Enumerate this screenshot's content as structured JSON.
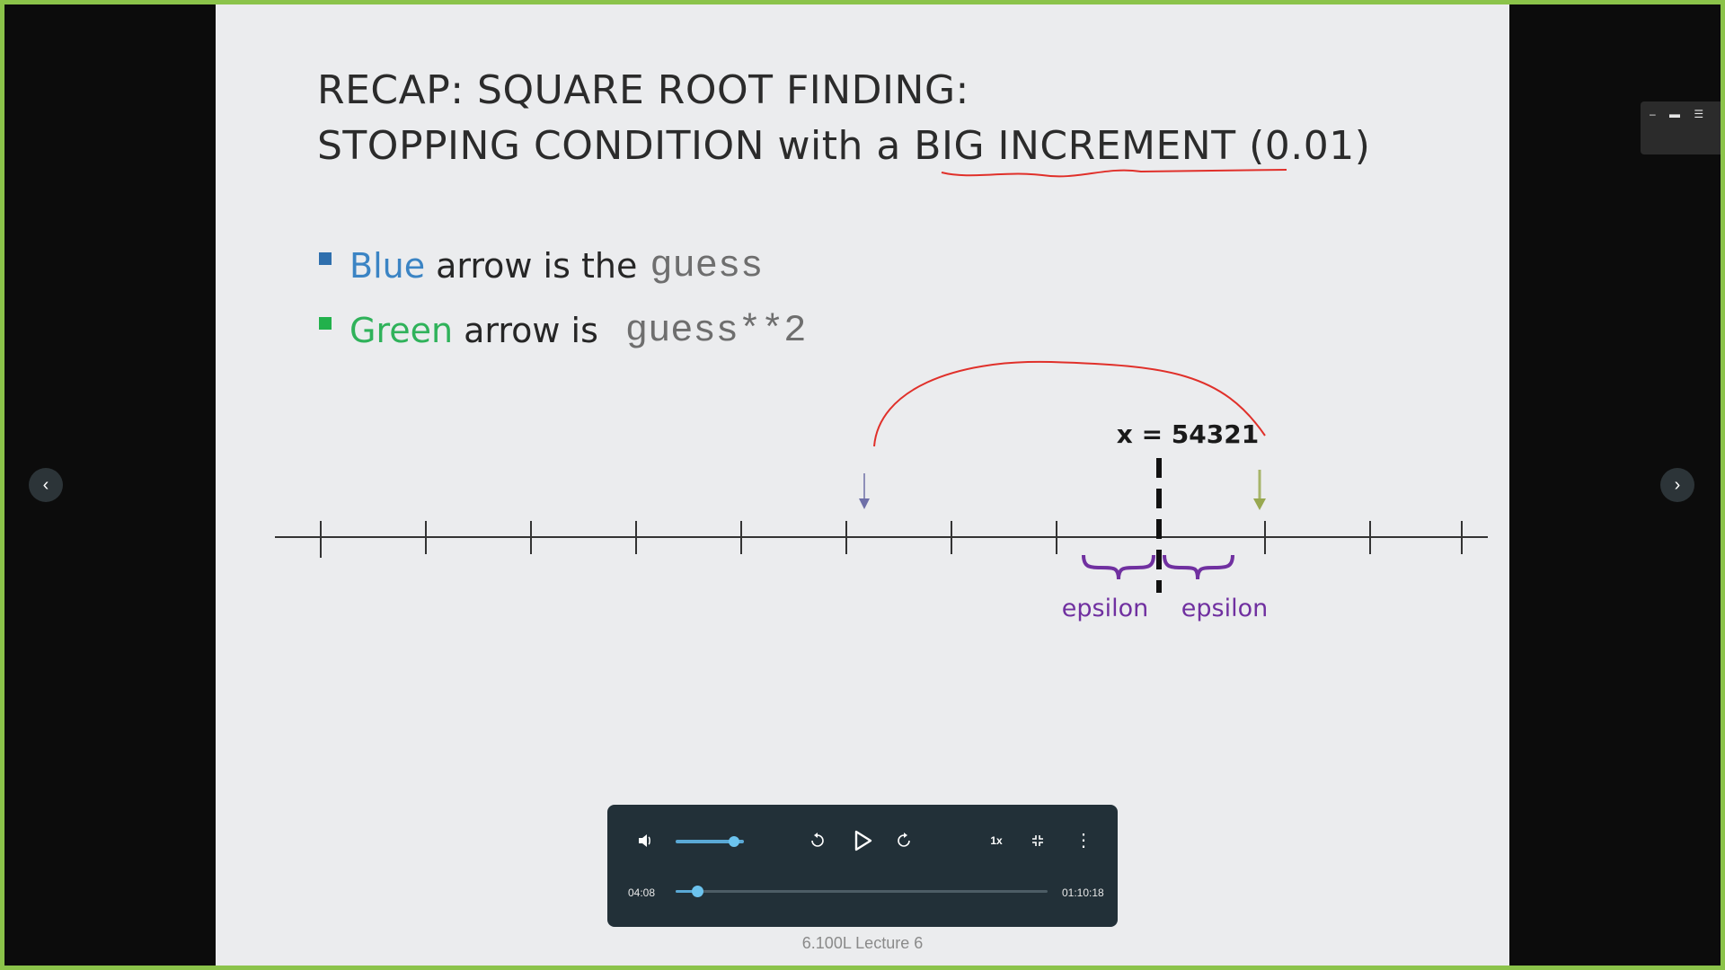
{
  "slide": {
    "title_line1": "RECAP: SQUARE ROOT FINDING:",
    "title_line2_pre": "STOPPING CONDITION with a ",
    "title_line2_emph": "BIG INCREMENT",
    "title_line2_post": " (0.01)",
    "bullets": [
      {
        "color_word": "Blue",
        "text": "arrow is the",
        "code": "guess"
      },
      {
        "color_word": "Green",
        "text": "arrow is",
        "code": "guess**2"
      }
    ],
    "x_label": "x = 54321",
    "epsilon_label": "epsilon"
  },
  "nav": {
    "prev_icon": "chevron-left-icon",
    "next_icon": "chevron-right-icon"
  },
  "player": {
    "current_time": "04:08",
    "duration": "01:10:18",
    "speed": "1x",
    "volume_fraction": 0.85,
    "progress_fraction": 0.059
  },
  "caption": "6.100L Lecture 6",
  "colors": {
    "accent": "#5aa9d6",
    "frame": "#8bc34a",
    "ink_red": "#e0302a",
    "purple": "#7030a0"
  }
}
